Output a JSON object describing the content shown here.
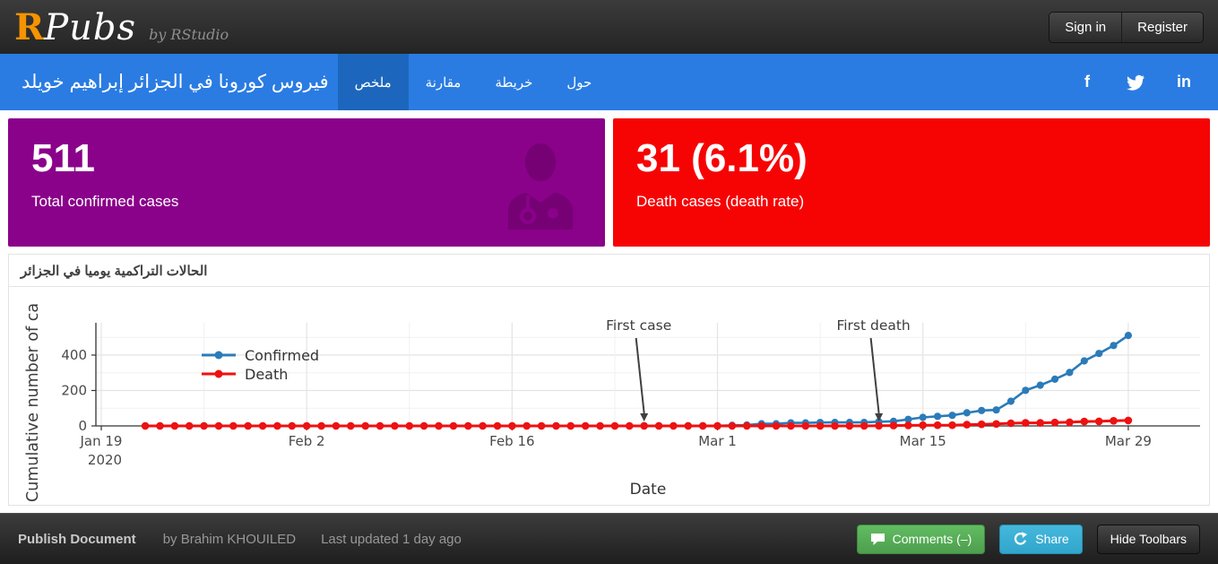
{
  "header": {
    "logo_r": "R",
    "logo_pubs": "Pubs",
    "logo_by": "by RStudio",
    "sign_in_label": "Sign in",
    "register_label": "Register"
  },
  "navbar": {
    "color": "#2a7ce2",
    "active_color": "#1c67bd",
    "title": "فيروس كورونا في الجزائر إبراهيم خويلد",
    "tabs": [
      {
        "label": "ملخص",
        "active": true
      },
      {
        "label": "مقارنة",
        "active": false
      },
      {
        "label": "خريطة",
        "active": false
      },
      {
        "label": "حول",
        "active": false
      }
    ],
    "social_icons": [
      "facebook-icon",
      "twitter-icon",
      "linkedin-icon"
    ]
  },
  "value_boxes": [
    {
      "value": "511",
      "label": "Total confirmed cases",
      "color": "#8a018a",
      "icon": "doctor-icon"
    },
    {
      "value": "31 (6.1%)",
      "label": "Death cases (death rate)",
      "color": "#f60404",
      "icon": ""
    }
  ],
  "panel": {
    "title": "الحالات التراكمية يوميا في الجزائر"
  },
  "chart_data": {
    "type": "line",
    "title": "الحالات التراكمية يوميا في الجزائر",
    "xlabel": "Date",
    "ylabel": "Cumulative number of ca",
    "start_day_offset": 3,
    "x_ticks": [
      {
        "label": "Jan 19",
        "sub": "2020",
        "day": 0
      },
      {
        "label": "Feb 2",
        "sub": "",
        "day": 14
      },
      {
        "label": "Feb 16",
        "sub": "",
        "day": 28
      },
      {
        "label": "Mar 1",
        "sub": "",
        "day": 42
      },
      {
        "label": "Mar 15",
        "sub": "",
        "day": 56
      },
      {
        "label": "Mar 29",
        "sub": "",
        "day": 70
      }
    ],
    "x_minor_days": [
      7,
      21,
      35,
      49,
      63
    ],
    "y_major": [
      200,
      400
    ],
    "y_minor": [
      100,
      300,
      500
    ],
    "y_tick_labels": [
      "0",
      "200",
      "400"
    ],
    "ylim": [
      0,
      530
    ],
    "grid": true,
    "legend_position": "inside-top-left",
    "annotations": [
      {
        "text": "First case",
        "index": 34
      },
      {
        "text": "First death",
        "index": 50
      }
    ],
    "series": [
      {
        "name": "Confirmed",
        "color": "#2b7bb9",
        "values": [
          0,
          0,
          0,
          0,
          0,
          0,
          0,
          0,
          0,
          0,
          0,
          0,
          0,
          0,
          0,
          0,
          0,
          0,
          0,
          0,
          0,
          0,
          0,
          0,
          0,
          0,
          0,
          0,
          0,
          0,
          0,
          0,
          0,
          0,
          1,
          1,
          1,
          1,
          1,
          1,
          3,
          5,
          12,
          12,
          17,
          17,
          19,
          20,
          20,
          20,
          24,
          26,
          37,
          48,
          54,
          60,
          74,
          87,
          90,
          139,
          201,
          230,
          264,
          302,
          367,
          409,
          454,
          511
        ]
      },
      {
        "name": "Death",
        "color": "#ee1111",
        "values": [
          0,
          0,
          0,
          0,
          0,
          0,
          0,
          0,
          0,
          0,
          0,
          0,
          0,
          0,
          0,
          0,
          0,
          0,
          0,
          0,
          0,
          0,
          0,
          0,
          0,
          0,
          0,
          0,
          0,
          0,
          0,
          0,
          0,
          0,
          0,
          0,
          0,
          0,
          0,
          0,
          0,
          0,
          0,
          0,
          0,
          0,
          0,
          0,
          0,
          0,
          1,
          2,
          3,
          4,
          4,
          4,
          7,
          9,
          11,
          15,
          17,
          17,
          19,
          21,
          25,
          26,
          29,
          31
        ]
      }
    ]
  },
  "toolbar": {
    "publish_label": "Publish Document",
    "author": "by Brahim KHOUILED",
    "updated": "Last updated 1 day ago",
    "comments_label": "Comments (–)",
    "share_label": "Share",
    "hide_label": "Hide Toolbars"
  }
}
